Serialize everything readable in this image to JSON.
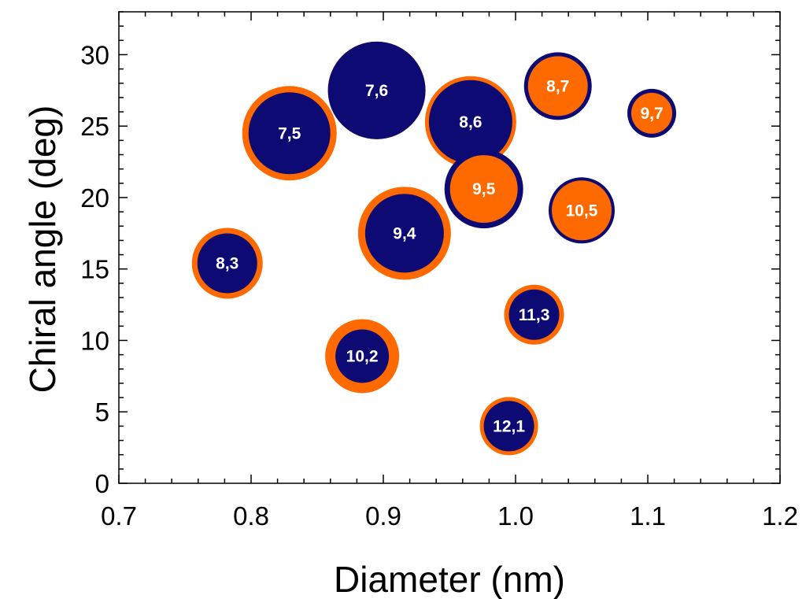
{
  "chart_data": {
    "type": "scatter",
    "xlabel": "Diameter (nm)",
    "ylabel": "Chiral angle (deg)",
    "xlim": [
      0.7,
      1.2
    ],
    "ylim": [
      0,
      33
    ],
    "x_ticks": [
      "0.7",
      "0.8",
      "0.9",
      "1.0",
      "1.1",
      "1.2"
    ],
    "y_ticks": [
      "0",
      "5",
      "10",
      "15",
      "20",
      "25",
      "30"
    ],
    "grid": false,
    "legend": "none",
    "colors": {
      "navy": "#0d0a73",
      "orange": "#ff6a00",
      "navy_text": "#ffffff",
      "orange_text": "#ffffff"
    },
    "points": [
      {
        "label": "8,3",
        "x": 0.782,
        "y": 15.4,
        "outer_size": 0.45,
        "inner_size": 0.38,
        "outer_color": "orange",
        "inner_color": "navy"
      },
      {
        "label": "7,5",
        "x": 0.829,
        "y": 24.5,
        "outer_size": 0.6,
        "inner_size": 0.52,
        "outer_color": "orange",
        "inner_color": "navy"
      },
      {
        "label": "7,6",
        "x": 0.895,
        "y": 27.5,
        "outer_size": 0.62,
        "inner_size": 0.62,
        "outer_color": "orange",
        "inner_color": "navy"
      },
      {
        "label": "10,2",
        "x": 0.884,
        "y": 8.9,
        "outer_size": 0.47,
        "inner_size": 0.34,
        "outer_color": "orange",
        "inner_color": "navy"
      },
      {
        "label": "9,4",
        "x": 0.916,
        "y": 17.5,
        "outer_size": 0.59,
        "inner_size": 0.5,
        "outer_color": "orange",
        "inner_color": "navy"
      },
      {
        "label": "8,6",
        "x": 0.966,
        "y": 25.3,
        "outer_size": 0.58,
        "inner_size": 0.53,
        "outer_color": "orange",
        "inner_color": "navy"
      },
      {
        "label": "9,5",
        "x": 0.976,
        "y": 20.6,
        "outer_size": 0.5,
        "inner_size": 0.43,
        "outer_color": "navy",
        "inner_color": "orange"
      },
      {
        "label": "8,7",
        "x": 1.032,
        "y": 27.8,
        "outer_size": 0.43,
        "inner_size": 0.38,
        "outer_color": "navy",
        "inner_color": "orange"
      },
      {
        "label": "9,7",
        "x": 1.103,
        "y": 25.9,
        "outer_size": 0.31,
        "inner_size": 0.26,
        "outer_color": "navy",
        "inner_color": "orange"
      },
      {
        "label": "10,5",
        "x": 1.05,
        "y": 19.1,
        "outer_size": 0.42,
        "inner_size": 0.38,
        "outer_color": "navy",
        "inner_color": "orange"
      },
      {
        "label": "11,3",
        "x": 1.014,
        "y": 11.8,
        "outer_size": 0.38,
        "inner_size": 0.32,
        "outer_color": "orange",
        "inner_color": "navy"
      },
      {
        "label": "12,1",
        "x": 0.995,
        "y": 4.0,
        "outer_size": 0.37,
        "inner_size": 0.32,
        "outer_color": "orange",
        "inner_color": "navy"
      }
    ]
  }
}
